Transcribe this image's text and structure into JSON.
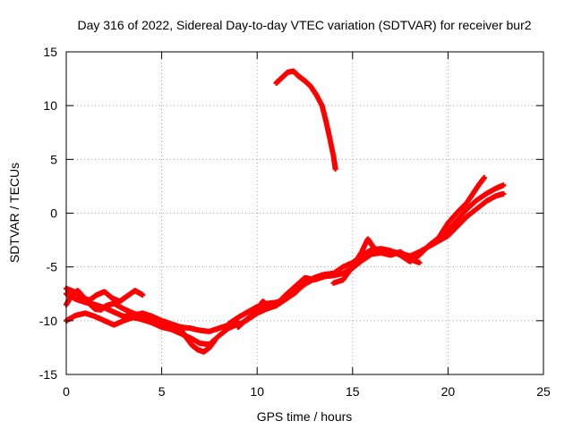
{
  "chart_data": {
    "type": "scatter",
    "title": "Day 316 of 2022, Sidereal Day-to-day VTEC variation (SDTVAR) for receiver bur2",
    "xlabel": "GPS time / hours",
    "ylabel": "SDTVAR / TECUs",
    "xlim": [
      0,
      25
    ],
    "ylim": [
      -15,
      15
    ],
    "xticks": [
      0,
      5,
      10,
      15,
      20,
      25
    ],
    "yticks": [
      -15,
      -10,
      -5,
      0,
      5,
      10,
      15
    ],
    "xtick_labels": [
      "0",
      "5",
      "10",
      "15",
      "20",
      "25"
    ],
    "ytick_labels": [
      "-15",
      "-10",
      "-5",
      "0",
      "5",
      "10",
      "15"
    ],
    "grid": true,
    "marker_color": "#ff0000",
    "series": [
      {
        "name": "track-1",
        "x": [
          0.0,
          0.4,
          0.8,
          1.2,
          1.6,
          2.0,
          2.4,
          2.8,
          3.2,
          3.6,
          4.0
        ],
        "y": [
          -7.0,
          -7.3,
          -7.8,
          -8.1,
          -7.6,
          -7.3,
          -7.9,
          -8.2,
          -7.7,
          -7.2,
          -7.6
        ]
      },
      {
        "name": "track-2",
        "x": [
          0.0,
          0.5,
          1.0,
          1.5,
          2.0,
          2.5,
          3.0,
          3.5,
          4.0,
          4.5,
          5.0,
          5.5,
          6.0,
          6.5,
          7.0,
          7.5,
          8.0,
          8.5,
          9.0
        ],
        "y": [
          -7.5,
          -8.0,
          -8.3,
          -8.5,
          -8.8,
          -9.2,
          -9.6,
          -9.5,
          -9.3,
          -9.6,
          -10.0,
          -10.3,
          -10.6,
          -10.7,
          -10.9,
          -11.0,
          -10.7,
          -10.4,
          -10.1
        ]
      },
      {
        "name": "track-3",
        "x": [
          0.0,
          0.5,
          1.0,
          1.5,
          2.0,
          2.5,
          3.0,
          3.5,
          4.0,
          4.5,
          5.0,
          5.5,
          6.0,
          6.5,
          7.0,
          7.5,
          8.0,
          8.5,
          9.0
        ],
        "y": [
          -10.0,
          -9.5,
          -9.3,
          -9.6,
          -10.0,
          -10.4,
          -10.0,
          -9.7,
          -9.9,
          -10.2,
          -10.6,
          -10.8,
          -11.2,
          -11.6,
          -12.1,
          -12.2,
          -11.4,
          -10.7,
          -10.3
        ]
      },
      {
        "name": "track-4",
        "x": [
          0.0,
          0.3,
          0.6,
          0.9,
          1.2,
          1.5,
          1.8,
          2.1,
          2.5,
          3.0,
          3.5,
          4.0,
          4.5,
          5.0,
          5.5,
          6.0,
          6.3,
          6.6,
          6.9,
          7.2,
          7.5,
          7.8
        ],
        "y": [
          -8.5,
          -7.6,
          -7.2,
          -7.8,
          -8.4,
          -8.9,
          -9.0,
          -8.6,
          -8.4,
          -8.9,
          -9.3,
          -9.6,
          -10.0,
          -10.3,
          -10.4,
          -10.8,
          -11.6,
          -12.3,
          -12.7,
          -12.9,
          -12.5,
          -11.8
        ]
      },
      {
        "name": "track-5",
        "x": [
          8.5,
          9.0,
          9.5,
          10.0,
          10.5,
          11.0,
          11.5,
          12.0,
          12.5,
          13.0,
          13.5,
          14.0,
          14.5,
          15.0,
          15.5,
          16.0,
          16.5,
          17.0,
          17.5,
          18.0,
          18.5,
          19.0,
          19.5,
          20.0,
          20.5,
          21.0,
          21.5,
          22.0,
          22.5,
          22.9
        ],
        "y": [
          -10.3,
          -9.7,
          -9.2,
          -8.7,
          -8.4,
          -8.3,
          -8.0,
          -7.3,
          -6.6,
          -6.1,
          -5.9,
          -5.8,
          -5.6,
          -5.1,
          -4.4,
          -3.8,
          -3.7,
          -3.6,
          -3.7,
          -4.0,
          -3.6,
          -3.1,
          -2.6,
          -2.1,
          -1.2,
          -0.3,
          0.4,
          1.1,
          1.6,
          1.8
        ]
      },
      {
        "name": "track-6",
        "x": [
          9.0,
          9.5,
          10.0,
          10.5,
          11.0,
          11.5,
          12.0,
          12.5,
          13.0,
          13.5,
          14.0,
          14.5,
          15.0,
          15.5,
          16.0,
          16.5,
          17.0,
          17.5,
          18.0,
          18.5,
          19.0,
          19.5,
          20.0,
          20.5,
          21.0,
          21.5,
          22.0,
          22.5,
          22.9
        ],
        "y": [
          -10.4,
          -9.9,
          -9.3,
          -8.9,
          -8.6,
          -8.0,
          -7.4,
          -6.5,
          -6.0,
          -5.7,
          -5.6,
          -5.0,
          -4.6,
          -3.9,
          -3.4,
          -3.3,
          -3.5,
          -3.9,
          -4.5,
          -3.9,
          -3.0,
          -2.3,
          -1.6,
          -0.6,
          0.4,
          1.2,
          1.8,
          2.3,
          2.6
        ]
      },
      {
        "name": "track-7",
        "x": [
          9.0,
          9.5,
          10.0,
          10.3,
          10.6,
          11.0,
          11.5,
          12.0,
          12.5,
          13.0,
          13.5,
          14.0
        ],
        "y": [
          -10.6,
          -9.8,
          -9.0,
          -8.2,
          -8.7,
          -8.5,
          -7.6,
          -6.8,
          -6.0,
          -6.2,
          -5.9,
          -5.7
        ]
      },
      {
        "name": "track-8",
        "x": [
          14.0,
          14.5,
          15.0,
          15.5,
          15.8,
          16.1,
          16.5,
          17.0,
          17.5,
          18.0,
          18.5
        ],
        "y": [
          -6.5,
          -6.2,
          -5.0,
          -3.5,
          -2.4,
          -3.2,
          -3.7,
          -3.9,
          -3.6,
          -4.3,
          -4.6
        ]
      },
      {
        "name": "track-9",
        "x": [
          19.5,
          20.0,
          20.5,
          21.0,
          21.3,
          21.6,
          21.9
        ],
        "y": [
          -2.3,
          -0.9,
          0.1,
          1.0,
          1.8,
          2.6,
          3.3
        ]
      },
      {
        "name": "track-10",
        "x": [
          11.0,
          11.3,
          11.6,
          11.9,
          12.2,
          12.5,
          12.8,
          13.1,
          13.4,
          13.6,
          13.8,
          14.0,
          14.1
        ],
        "y": [
          12.1,
          12.6,
          13.1,
          13.2,
          12.7,
          12.3,
          11.8,
          11.0,
          10.0,
          8.6,
          7.0,
          5.3,
          4.1
        ]
      }
    ]
  }
}
